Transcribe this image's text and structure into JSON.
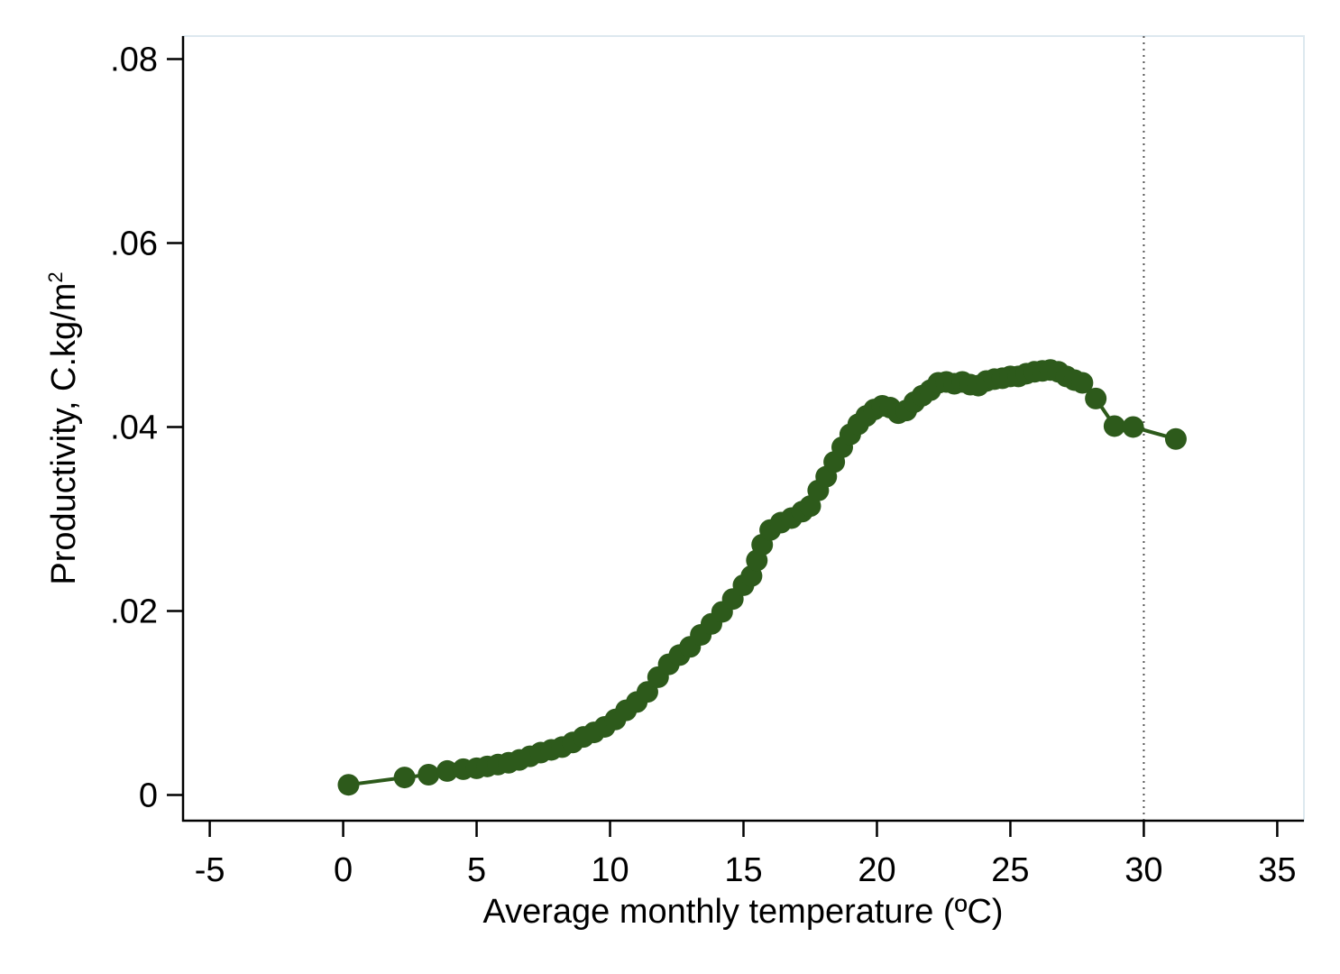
{
  "chart_data": {
    "type": "line",
    "title": "",
    "xlabel": "Average monthly temperature (ºC)",
    "ylabel": {
      "main": "Productivity, C.kg/m",
      "superscript": "2"
    },
    "xlim": [
      -6,
      36
    ],
    "ylim": [
      -0.0028,
      0.0825
    ],
    "x_ticks": [
      -5,
      0,
      5,
      10,
      15,
      20,
      25,
      30,
      35
    ],
    "x_tick_labels": [
      "-5",
      "0",
      "5",
      "10",
      "15",
      "20",
      "25",
      "30",
      "35"
    ],
    "y_ticks": [
      0,
      0.02,
      0.04,
      0.06,
      0.08
    ],
    "y_tick_labels": [
      "0",
      ".02",
      ".04",
      ".06",
      ".08"
    ],
    "reference_line": {
      "x": 30,
      "style": "dotted"
    },
    "grid": false,
    "legend": "none",
    "colors": {
      "series": "#2d5a1b",
      "axis": "#000000",
      "frame": "#dde8ef",
      "reference": "#555555"
    },
    "series": [
      {
        "x": [
          0.2,
          2.3,
          3.2,
          3.9,
          4.5,
          5.0,
          5.4,
          5.8,
          6.2,
          6.6,
          7.0,
          7.4,
          7.8,
          8.2,
          8.6,
          9.0,
          9.4,
          9.8,
          10.2,
          10.6,
          11.0,
          11.4,
          11.8,
          12.2,
          12.6,
          13.0,
          13.4,
          13.8,
          14.2,
          14.6,
          15.0,
          15.3,
          15.5,
          15.7,
          16.0,
          16.4,
          16.8,
          17.2,
          17.5,
          17.8,
          18.1,
          18.4,
          18.7,
          19.0,
          19.3,
          19.6,
          19.9,
          20.2,
          20.5,
          20.8,
          21.1,
          21.4,
          21.7,
          22.0,
          22.3,
          22.6,
          22.9,
          23.2,
          23.5,
          23.8,
          24.1,
          24.4,
          24.7,
          25.0,
          25.3,
          25.6,
          25.9,
          26.2,
          26.5,
          26.8,
          27.1,
          27.4,
          27.7,
          28.2,
          28.9,
          29.6,
          31.2
        ],
        "y": [
          0.0011,
          0.0019,
          0.0022,
          0.0026,
          0.0028,
          0.0029,
          0.0031,
          0.0033,
          0.0035,
          0.0038,
          0.0042,
          0.0046,
          0.0049,
          0.0052,
          0.0057,
          0.0063,
          0.0068,
          0.0074,
          0.0082,
          0.0092,
          0.0101,
          0.0112,
          0.0128,
          0.0142,
          0.0152,
          0.0161,
          0.0174,
          0.0186,
          0.0199,
          0.0213,
          0.0228,
          0.0238,
          0.0255,
          0.0272,
          0.0288,
          0.0296,
          0.0301,
          0.0308,
          0.0314,
          0.0331,
          0.0346,
          0.0362,
          0.0378,
          0.0392,
          0.0403,
          0.0412,
          0.0419,
          0.0423,
          0.0421,
          0.0415,
          0.0418,
          0.0427,
          0.0434,
          0.044,
          0.0448,
          0.0449,
          0.0447,
          0.0449,
          0.0446,
          0.0445,
          0.045,
          0.0452,
          0.0453,
          0.0455,
          0.0455,
          0.0458,
          0.046,
          0.0461,
          0.0462,
          0.046,
          0.0455,
          0.0451,
          0.0448,
          0.0431,
          0.0401,
          0.04,
          0.0387
        ]
      }
    ]
  }
}
